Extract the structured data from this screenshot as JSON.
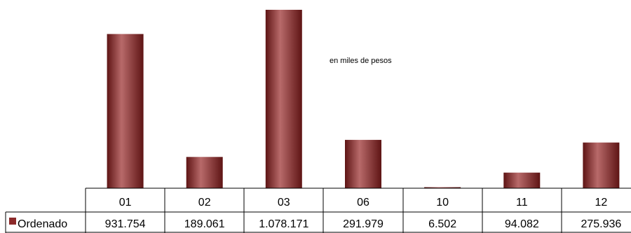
{
  "chart_data": {
    "type": "bar",
    "categories": [
      "01",
      "02",
      "03",
      "06",
      "10",
      "11",
      "12"
    ],
    "series": [
      {
        "name": "Ordenado",
        "values": [
          931754,
          189061,
          1078171,
          291979,
          6502,
          94082,
          275936
        ],
        "value_labels": [
          "931.754",
          "189.061",
          "1.078.171",
          "291.979",
          "6.502",
          "94.082",
          "275.936"
        ]
      }
    ],
    "annotation": "en miles de pesos",
    "title": "",
    "xlabel": "",
    "ylabel": "",
    "ylim": [
      0,
      1078171
    ],
    "grid": false,
    "legend": "data-table-left",
    "colors": {
      "bar": "#8c2a2a",
      "bar_highlight": "#b86a6a",
      "bar_shadow": "#5e1414",
      "legend_key": "#8c2a2a"
    }
  }
}
